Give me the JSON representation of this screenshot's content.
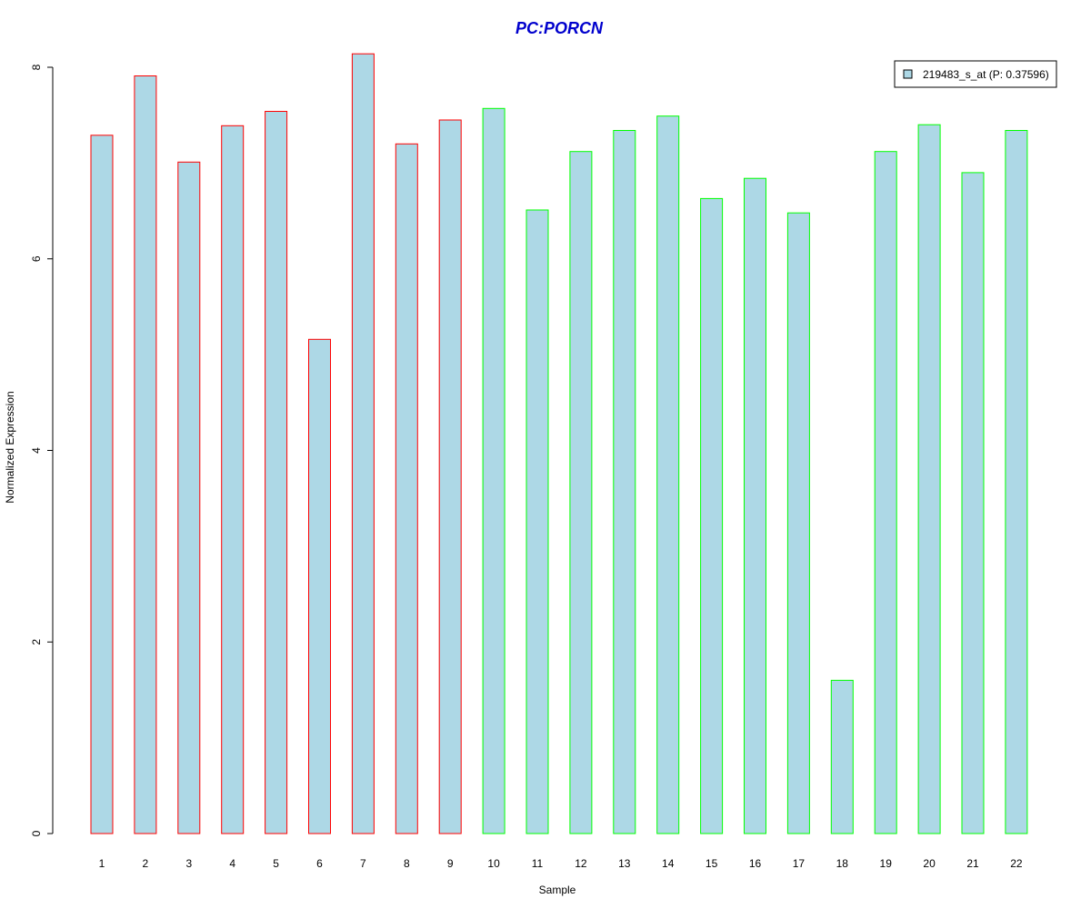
{
  "chart_data": {
    "type": "bar",
    "title": "PC:PORCN",
    "xlabel": "Sample",
    "ylabel": "Normalized Expression",
    "categories": [
      "1",
      "2",
      "3",
      "4",
      "5",
      "6",
      "7",
      "8",
      "9",
      "10",
      "11",
      "12",
      "13",
      "14",
      "15",
      "16",
      "17",
      "18",
      "19",
      "20",
      "21",
      "22"
    ],
    "series": [
      {
        "name": "219483_s_at (P: 0.37596)",
        "values": [
          7.29,
          7.91,
          7.01,
          7.39,
          7.54,
          5.16,
          8.14,
          7.2,
          7.45,
          7.57,
          6.51,
          7.12,
          7.34,
          7.49,
          6.63,
          6.84,
          6.48,
          1.6,
          7.12,
          7.4,
          6.9,
          7.34
        ]
      }
    ],
    "group_colors": [
      "red",
      "red",
      "red",
      "red",
      "red",
      "red",
      "red",
      "red",
      "red",
      "green",
      "green",
      "green",
      "green",
      "green",
      "green",
      "green",
      "green",
      "green",
      "green",
      "green",
      "green",
      "green"
    ],
    "yticks": [
      0,
      2,
      4,
      6,
      8
    ],
    "ylim": [
      0,
      8
    ],
    "legend_position": "top-right",
    "grid": false
  },
  "colors": {
    "fill": "#add8e6",
    "red": "#ff0000",
    "green": "#00ff00",
    "title": "#0000cd",
    "axis": "#000000"
  },
  "legend": {
    "label": "219483_s_at (P: 0.37596)"
  }
}
